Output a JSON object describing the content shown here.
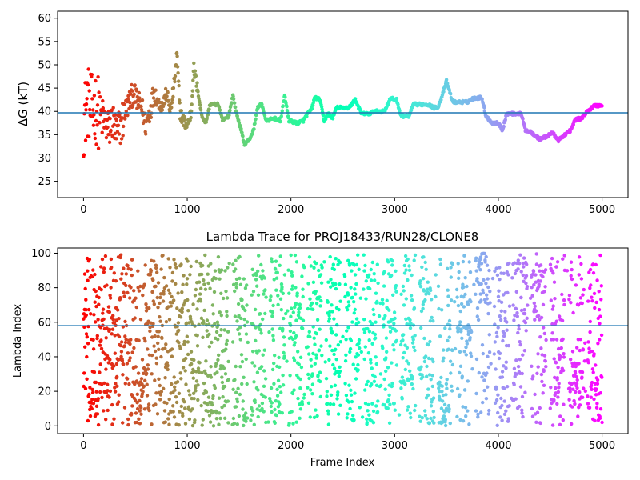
{
  "chart_data": [
    {
      "type": "scatter",
      "title": "",
      "xlabel": "",
      "ylabel": "ΔG (kT)",
      "xlim": [
        -250,
        5250
      ],
      "ylim": [
        21.5,
        61.5
      ],
      "xticks": [
        0,
        1000,
        2000,
        3000,
        4000,
        5000
      ],
      "yticks": [
        25,
        30,
        35,
        40,
        45,
        50,
        55,
        60
      ],
      "hline": 39.7,
      "colormap": "rainbow (red at frame 0 → violet at frame 5000)",
      "trace_keypoints": [
        [
          0,
          38
        ],
        [
          40,
          42
        ],
        [
          80,
          40
        ],
        [
          120,
          41
        ],
        [
          160,
          39
        ],
        [
          200,
          38
        ],
        [
          240,
          36
        ],
        [
          280,
          38
        ],
        [
          320,
          35
        ],
        [
          360,
          37
        ],
        [
          400,
          40
        ],
        [
          440,
          42
        ],
        [
          480,
          44
        ],
        [
          520,
          42
        ],
        [
          560,
          41
        ],
        [
          600,
          37
        ],
        [
          640,
          40
        ],
        [
          680,
          44
        ],
        [
          720,
          42
        ],
        [
          760,
          41
        ],
        [
          800,
          44
        ],
        [
          840,
          40
        ],
        [
          880,
          47
        ],
        [
          900,
          52.5
        ],
        [
          930,
          40
        ],
        [
          960,
          38
        ],
        [
          1000,
          37
        ],
        [
          1040,
          40
        ],
        [
          1060,
          49.5
        ],
        [
          1080,
          47
        ],
        [
          1120,
          42
        ],
        [
          1140,
          39
        ],
        [
          1180,
          37.5
        ],
        [
          1220,
          41.5
        ],
        [
          1300,
          41.5
        ],
        [
          1340,
          38
        ],
        [
          1400,
          39
        ],
        [
          1440,
          43.5
        ],
        [
          1470,
          40
        ],
        [
          1520,
          36
        ],
        [
          1550,
          33
        ],
        [
          1600,
          34
        ],
        [
          1640,
          36
        ],
        [
          1680,
          41
        ],
        [
          1720,
          41.5
        ],
        [
          1760,
          38
        ],
        [
          1840,
          38.5
        ],
        [
          1900,
          38
        ],
        [
          1940,
          43.5
        ],
        [
          1980,
          38
        ],
        [
          2060,
          37.5
        ],
        [
          2120,
          38
        ],
        [
          2160,
          39.5
        ],
        [
          2200,
          40.5
        ],
        [
          2230,
          43
        ],
        [
          2280,
          42.5
        ],
        [
          2320,
          38
        ],
        [
          2360,
          39.5
        ],
        [
          2400,
          38.5
        ],
        [
          2440,
          40.8
        ],
        [
          2560,
          40.8
        ],
        [
          2620,
          42.5
        ],
        [
          2680,
          39.5
        ],
        [
          2760,
          39.5
        ],
        [
          2800,
          40
        ],
        [
          2900,
          40
        ],
        [
          2960,
          42.8
        ],
        [
          3020,
          42.5
        ],
        [
          3060,
          39
        ],
        [
          3140,
          39
        ],
        [
          3180,
          41.5
        ],
        [
          3320,
          41.5
        ],
        [
          3380,
          40.8
        ],
        [
          3420,
          41
        ],
        [
          3460,
          43.5
        ],
        [
          3500,
          46.5
        ],
        [
          3560,
          42
        ],
        [
          3700,
          42
        ],
        [
          3760,
          42.8
        ],
        [
          3840,
          43
        ],
        [
          3880,
          39
        ],
        [
          3940,
          37.5
        ],
        [
          4000,
          37.5
        ],
        [
          4040,
          36
        ],
        [
          4080,
          39.5
        ],
        [
          4220,
          39.5
        ],
        [
          4260,
          36
        ],
        [
          4320,
          35.5
        ],
        [
          4400,
          34
        ],
        [
          4480,
          34.8
        ],
        [
          4520,
          35.5
        ],
        [
          4580,
          33.8
        ],
        [
          4640,
          35
        ],
        [
          4700,
          36
        ],
        [
          4740,
          38.2
        ],
        [
          4800,
          38.5
        ],
        [
          4860,
          40
        ],
        [
          4920,
          41.2
        ],
        [
          5000,
          41.3
        ]
      ]
    },
    {
      "type": "scatter",
      "title": "Lambda Trace for PROJ18433/RUN28/CLONE8",
      "xlabel": "Frame Index",
      "ylabel": "Lambda Index",
      "xlim": [
        -250,
        5250
      ],
      "ylim": [
        -4.5,
        103
      ],
      "xticks": [
        0,
        1000,
        2000,
        3000,
        4000,
        5000
      ],
      "yticks": [
        0,
        20,
        40,
        60,
        80,
        100
      ],
      "hline": 58,
      "colormap": "rainbow (red at frame 0 → violet at frame 5000)"
    }
  ]
}
